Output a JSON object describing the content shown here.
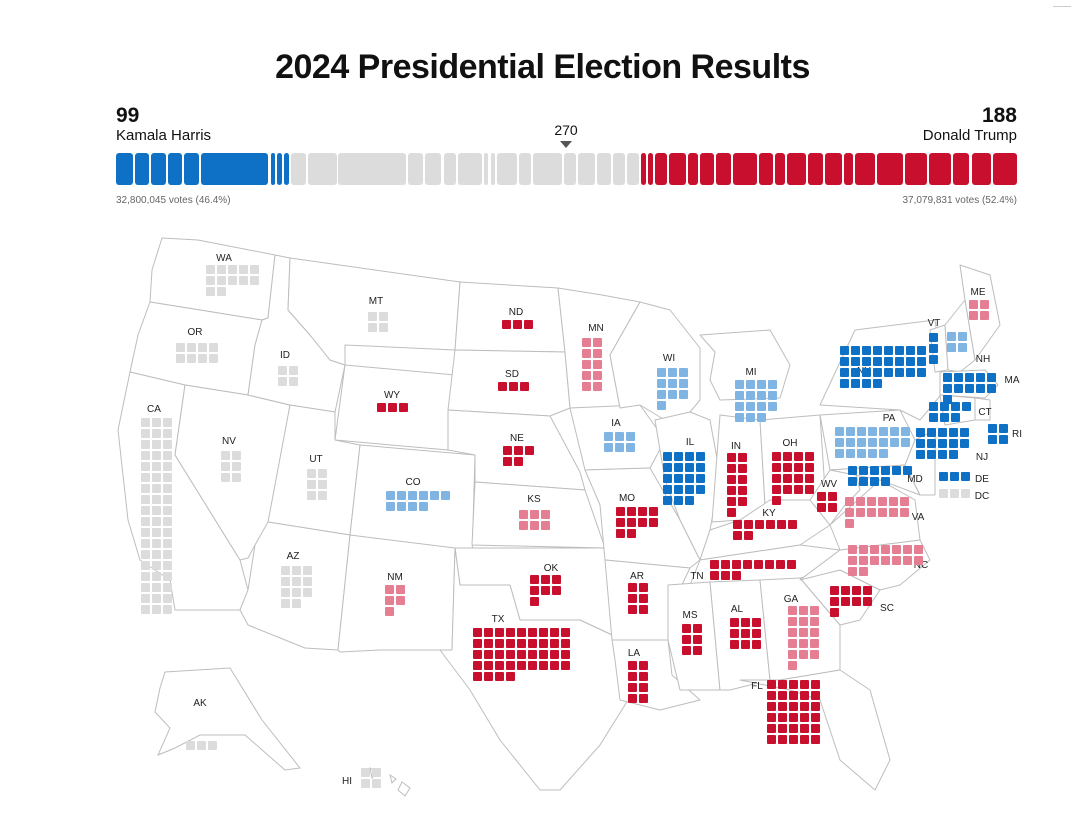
{
  "header": {
    "title": "2024 Presidential Election Results"
  },
  "harris": {
    "ev": "99",
    "name": "Kamala Harris",
    "votes": "32,800,045 votes (46.4%)"
  },
  "trump": {
    "ev": "188",
    "name": "Donald Trump",
    "votes": "37,079,831 votes (52.4%)"
  },
  "threshold": {
    "label": "270"
  },
  "colors": {
    "dem": "#0f71c6",
    "lean_dem": "#80b4e3",
    "rep": "#c8102e",
    "lean_rep": "#e67e93",
    "undecided": "#dcdcdc"
  },
  "bar_segments": [
    {
      "party": "dem",
      "ev": 7
    },
    {
      "party": "dem",
      "ev": 6
    },
    {
      "party": "dem",
      "ev": 6
    },
    {
      "party": "dem",
      "ev": 6
    },
    {
      "party": "dem",
      "ev": 6
    },
    {
      "party": "dem",
      "ev": 28
    },
    {
      "party": "dem",
      "ev": 2
    },
    {
      "party": "dem",
      "ev": 2
    },
    {
      "party": "dem",
      "ev": 2
    },
    {
      "party": "undecided",
      "ev": 6
    },
    {
      "party": "undecided",
      "ev": 12
    },
    {
      "party": "undecided",
      "ev": 28
    },
    {
      "party": "undecided",
      "ev": 6
    },
    {
      "party": "undecided",
      "ev": 7
    },
    {
      "party": "undecided",
      "ev": 5
    },
    {
      "party": "undecided",
      "ev": 10
    },
    {
      "party": "undecided",
      "ev": 2
    },
    {
      "party": "undecided",
      "ev": 2
    },
    {
      "party": "undecided",
      "ev": 8
    },
    {
      "party": "undecided",
      "ev": 5
    },
    {
      "party": "undecided",
      "ev": 12
    },
    {
      "party": "undecided",
      "ev": 5
    },
    {
      "party": "undecided",
      "ev": 7
    },
    {
      "party": "undecided",
      "ev": 6
    },
    {
      "party": "undecided",
      "ev": 5
    },
    {
      "party": "undecided",
      "ev": 5
    },
    {
      "party": "rep",
      "ev": 2
    },
    {
      "party": "rep",
      "ev": 2
    },
    {
      "party": "rep",
      "ev": 5
    },
    {
      "party": "rep",
      "ev": 7
    },
    {
      "party": "rep",
      "ev": 4
    },
    {
      "party": "rep",
      "ev": 6
    },
    {
      "party": "rep",
      "ev": 6
    },
    {
      "party": "rep",
      "ev": 10
    },
    {
      "party": "rep",
      "ev": 6
    },
    {
      "party": "rep",
      "ev": 4
    },
    {
      "party": "rep",
      "ev": 8
    },
    {
      "party": "rep",
      "ev": 6
    },
    {
      "party": "rep",
      "ev": 7
    },
    {
      "party": "rep",
      "ev": 4
    },
    {
      "party": "rep",
      "ev": 8
    },
    {
      "party": "rep",
      "ev": 11
    },
    {
      "party": "rep",
      "ev": 9
    },
    {
      "party": "rep",
      "ev": 9
    },
    {
      "party": "rep",
      "ev": 7
    },
    {
      "party": "rep",
      "ev": 8
    },
    {
      "party": "rep",
      "ev": 10
    }
  ],
  "states": [
    {
      "abbr": "WA",
      "party": "undecided",
      "ev": 12
    },
    {
      "abbr": "OR",
      "party": "undecided",
      "ev": 8
    },
    {
      "abbr": "CA",
      "party": "undecided",
      "ev": 54
    },
    {
      "abbr": "NV",
      "party": "undecided",
      "ev": 6
    },
    {
      "abbr": "ID",
      "party": "undecided",
      "ev": 4
    },
    {
      "abbr": "MT",
      "party": "undecided",
      "ev": 4
    },
    {
      "abbr": "WY",
      "party": "rep",
      "ev": 3
    },
    {
      "abbr": "UT",
      "party": "undecided",
      "ev": 6
    },
    {
      "abbr": "AZ",
      "party": "undecided",
      "ev": 11
    },
    {
      "abbr": "CO",
      "party": "lean_dem",
      "ev": 10
    },
    {
      "abbr": "NM",
      "party": "lean_rep",
      "ev": 5
    },
    {
      "abbr": "ND",
      "party": "rep",
      "ev": 3
    },
    {
      "abbr": "SD",
      "party": "rep",
      "ev": 3
    },
    {
      "abbr": "NE",
      "party": "rep",
      "ev": 5
    },
    {
      "abbr": "KS",
      "party": "lean_rep",
      "ev": 6
    },
    {
      "abbr": "OK",
      "party": "rep",
      "ev": 7
    },
    {
      "abbr": "TX",
      "party": "rep",
      "ev": 40
    },
    {
      "abbr": "MN",
      "party": "lean_rep",
      "ev": 10
    },
    {
      "abbr": "IA",
      "party": "lean_dem",
      "ev": 6
    },
    {
      "abbr": "MO",
      "party": "rep",
      "ev": 10
    },
    {
      "abbr": "AR",
      "party": "rep",
      "ev": 6
    },
    {
      "abbr": "LA",
      "party": "rep",
      "ev": 8
    },
    {
      "abbr": "WI",
      "party": "lean_dem",
      "ev": 10
    },
    {
      "abbr": "IL",
      "party": "dem",
      "ev": 19
    },
    {
      "abbr": "MI",
      "party": "lean_dem",
      "ev": 15
    },
    {
      "abbr": "IN",
      "party": "rep",
      "ev": 11
    },
    {
      "abbr": "OH",
      "party": "rep",
      "ev": 17
    },
    {
      "abbr": "KY",
      "party": "rep",
      "ev": 8
    },
    {
      "abbr": "TN",
      "party": "rep",
      "ev": 11
    },
    {
      "abbr": "MS",
      "party": "rep",
      "ev": 6
    },
    {
      "abbr": "AL",
      "party": "rep",
      "ev": 9
    },
    {
      "abbr": "GA",
      "party": "lean_rep",
      "ev": 16
    },
    {
      "abbr": "FL",
      "party": "rep",
      "ev": 30
    },
    {
      "abbr": "SC",
      "party": "rep",
      "ev": 9
    },
    {
      "abbr": "NC",
      "party": "lean_rep",
      "ev": 16
    },
    {
      "abbr": "VA",
      "party": "lean_rep",
      "ev": 13
    },
    {
      "abbr": "WV",
      "party": "rep",
      "ev": 4
    },
    {
      "abbr": "PA",
      "party": "lean_dem",
      "ev": 19
    },
    {
      "abbr": "NY",
      "party": "dem",
      "ev": 28
    },
    {
      "abbr": "MD",
      "party": "dem",
      "ev": 10
    },
    {
      "abbr": "DE",
      "party": "dem",
      "ev": 3
    },
    {
      "abbr": "DC",
      "party": "undecided",
      "ev": 3
    },
    {
      "abbr": "NJ",
      "party": "dem",
      "ev": 14
    },
    {
      "abbr": "CT",
      "party": "dem",
      "ev": 7
    },
    {
      "abbr": "RI",
      "party": "dem",
      "ev": 4
    },
    {
      "abbr": "MA",
      "party": "dem",
      "ev": 11
    },
    {
      "abbr": "NH",
      "party": "lean_dem",
      "ev": 4
    },
    {
      "abbr": "VT",
      "party": "dem",
      "ev": 3
    },
    {
      "abbr": "ME",
      "party": "lean_rep",
      "ev": 4
    },
    {
      "abbr": "AK",
      "party": "undecided",
      "ev": 3
    },
    {
      "abbr": "HI",
      "party": "undecided",
      "ev": 4
    }
  ]
}
